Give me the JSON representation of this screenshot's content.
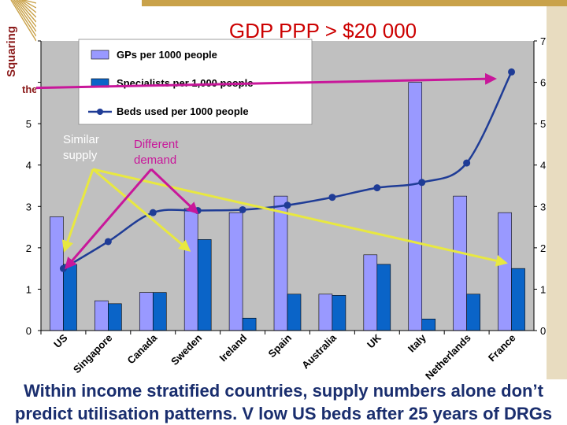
{
  "slide": {
    "title": "GDP PPP > $20 000",
    "logo_text_line1": "Squaring",
    "logo_text_line2": "the",
    "caption_line1": "Within income stratified countries, supply numbers alone don’t",
    "caption_line2": "predict utilisation patterns. V low US beds after 25 years of DRGs",
    "annotation_similar_line1": "Similar",
    "annotation_similar_line2": "supply",
    "annotation_different_line1": "Different",
    "annotation_different_line2": "demand"
  },
  "colors": {
    "title": "#cc0000",
    "caption": "#1a2e6e",
    "plot_background": "#c0c0c0",
    "gps_bar": "#9999ff",
    "specialists_bar": "#0a64c8",
    "beds_line": "#1f3c96",
    "arrow_yellow": "#e8e840",
    "arrow_magenta": "#c8179a",
    "logo_band": "#c9a24a",
    "logo_text": "#8b1a1a"
  },
  "chart_data": {
    "type": "bar",
    "title": "GDP PPP > $20 000",
    "categories": [
      "US",
      "Singapore",
      "Canada",
      "Sweden",
      "Ireland",
      "Spain",
      "Australia",
      "UK",
      "Italy",
      "Netherlands",
      "France"
    ],
    "series": [
      {
        "name": "GPs per 1000 people",
        "type": "bar",
        "values": [
          2.75,
          0.72,
          0.92,
          2.95,
          2.85,
          3.25,
          0.88,
          1.83,
          6.0,
          3.25,
          2.85
        ]
      },
      {
        "name": "Specialists per 1,000 people",
        "type": "bar",
        "values": [
          1.6,
          0.65,
          0.92,
          2.2,
          0.3,
          0.88,
          0.85,
          1.6,
          0.28,
          0.88,
          1.5
        ]
      },
      {
        "name": "Beds used per 1000 people",
        "type": "line",
        "values": [
          1.5,
          2.15,
          2.85,
          2.9,
          2.92,
          3.03,
          3.22,
          3.45,
          3.58,
          4.05,
          6.25
        ]
      }
    ],
    "ylim": [
      0,
      7
    ],
    "y_ticks": [
      0,
      1,
      2,
      3,
      4,
      5,
      6,
      7
    ],
    "grid": false,
    "legend_position": "top-left"
  }
}
